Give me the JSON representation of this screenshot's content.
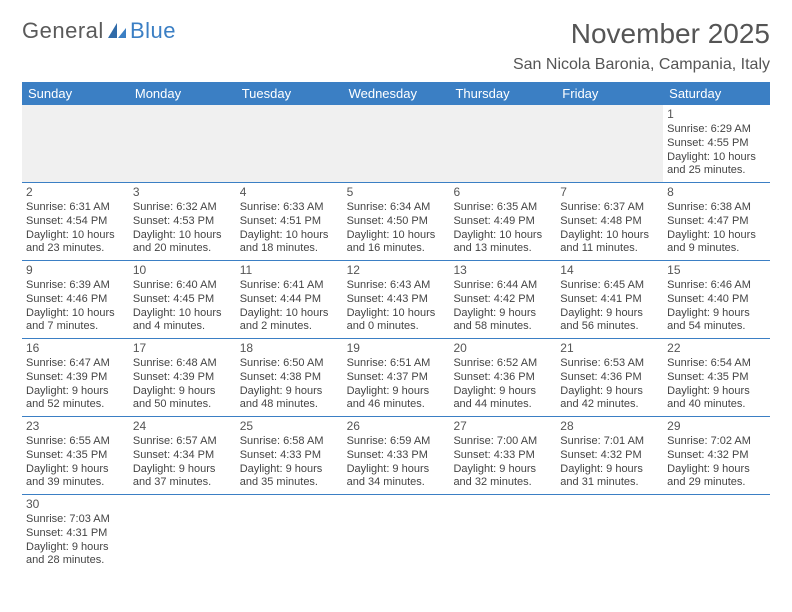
{
  "logo": {
    "text1": "General",
    "text2": "Blue"
  },
  "title": "November 2025",
  "location": "San Nicola Baronia, Campania, Italy",
  "colors": {
    "header_bg": "#3b7fc4",
    "header_text": "#ffffff",
    "border": "#3b7fc4",
    "empty_bg": "#f0f0f0",
    "text": "#444444",
    "title_text": "#555555"
  },
  "dow": [
    "Sunday",
    "Monday",
    "Tuesday",
    "Wednesday",
    "Thursday",
    "Friday",
    "Saturday"
  ],
  "weeks": [
    [
      null,
      null,
      null,
      null,
      null,
      null,
      {
        "n": "1",
        "sr": "Sunrise: 6:29 AM",
        "ss": "Sunset: 4:55 PM",
        "dl": "Daylight: 10 hours and 25 minutes."
      }
    ],
    [
      {
        "n": "2",
        "sr": "Sunrise: 6:31 AM",
        "ss": "Sunset: 4:54 PM",
        "dl": "Daylight: 10 hours and 23 minutes."
      },
      {
        "n": "3",
        "sr": "Sunrise: 6:32 AM",
        "ss": "Sunset: 4:53 PM",
        "dl": "Daylight: 10 hours and 20 minutes."
      },
      {
        "n": "4",
        "sr": "Sunrise: 6:33 AM",
        "ss": "Sunset: 4:51 PM",
        "dl": "Daylight: 10 hours and 18 minutes."
      },
      {
        "n": "5",
        "sr": "Sunrise: 6:34 AM",
        "ss": "Sunset: 4:50 PM",
        "dl": "Daylight: 10 hours and 16 minutes."
      },
      {
        "n": "6",
        "sr": "Sunrise: 6:35 AM",
        "ss": "Sunset: 4:49 PM",
        "dl": "Daylight: 10 hours and 13 minutes."
      },
      {
        "n": "7",
        "sr": "Sunrise: 6:37 AM",
        "ss": "Sunset: 4:48 PM",
        "dl": "Daylight: 10 hours and 11 minutes."
      },
      {
        "n": "8",
        "sr": "Sunrise: 6:38 AM",
        "ss": "Sunset: 4:47 PM",
        "dl": "Daylight: 10 hours and 9 minutes."
      }
    ],
    [
      {
        "n": "9",
        "sr": "Sunrise: 6:39 AM",
        "ss": "Sunset: 4:46 PM",
        "dl": "Daylight: 10 hours and 7 minutes."
      },
      {
        "n": "10",
        "sr": "Sunrise: 6:40 AM",
        "ss": "Sunset: 4:45 PM",
        "dl": "Daylight: 10 hours and 4 minutes."
      },
      {
        "n": "11",
        "sr": "Sunrise: 6:41 AM",
        "ss": "Sunset: 4:44 PM",
        "dl": "Daylight: 10 hours and 2 minutes."
      },
      {
        "n": "12",
        "sr": "Sunrise: 6:43 AM",
        "ss": "Sunset: 4:43 PM",
        "dl": "Daylight: 10 hours and 0 minutes."
      },
      {
        "n": "13",
        "sr": "Sunrise: 6:44 AM",
        "ss": "Sunset: 4:42 PM",
        "dl": "Daylight: 9 hours and 58 minutes."
      },
      {
        "n": "14",
        "sr": "Sunrise: 6:45 AM",
        "ss": "Sunset: 4:41 PM",
        "dl": "Daylight: 9 hours and 56 minutes."
      },
      {
        "n": "15",
        "sr": "Sunrise: 6:46 AM",
        "ss": "Sunset: 4:40 PM",
        "dl": "Daylight: 9 hours and 54 minutes."
      }
    ],
    [
      {
        "n": "16",
        "sr": "Sunrise: 6:47 AM",
        "ss": "Sunset: 4:39 PM",
        "dl": "Daylight: 9 hours and 52 minutes."
      },
      {
        "n": "17",
        "sr": "Sunrise: 6:48 AM",
        "ss": "Sunset: 4:39 PM",
        "dl": "Daylight: 9 hours and 50 minutes."
      },
      {
        "n": "18",
        "sr": "Sunrise: 6:50 AM",
        "ss": "Sunset: 4:38 PM",
        "dl": "Daylight: 9 hours and 48 minutes."
      },
      {
        "n": "19",
        "sr": "Sunrise: 6:51 AM",
        "ss": "Sunset: 4:37 PM",
        "dl": "Daylight: 9 hours and 46 minutes."
      },
      {
        "n": "20",
        "sr": "Sunrise: 6:52 AM",
        "ss": "Sunset: 4:36 PM",
        "dl": "Daylight: 9 hours and 44 minutes."
      },
      {
        "n": "21",
        "sr": "Sunrise: 6:53 AM",
        "ss": "Sunset: 4:36 PM",
        "dl": "Daylight: 9 hours and 42 minutes."
      },
      {
        "n": "22",
        "sr": "Sunrise: 6:54 AM",
        "ss": "Sunset: 4:35 PM",
        "dl": "Daylight: 9 hours and 40 minutes."
      }
    ],
    [
      {
        "n": "23",
        "sr": "Sunrise: 6:55 AM",
        "ss": "Sunset: 4:35 PM",
        "dl": "Daylight: 9 hours and 39 minutes."
      },
      {
        "n": "24",
        "sr": "Sunrise: 6:57 AM",
        "ss": "Sunset: 4:34 PM",
        "dl": "Daylight: 9 hours and 37 minutes."
      },
      {
        "n": "25",
        "sr": "Sunrise: 6:58 AM",
        "ss": "Sunset: 4:33 PM",
        "dl": "Daylight: 9 hours and 35 minutes."
      },
      {
        "n": "26",
        "sr": "Sunrise: 6:59 AM",
        "ss": "Sunset: 4:33 PM",
        "dl": "Daylight: 9 hours and 34 minutes."
      },
      {
        "n": "27",
        "sr": "Sunrise: 7:00 AM",
        "ss": "Sunset: 4:33 PM",
        "dl": "Daylight: 9 hours and 32 minutes."
      },
      {
        "n": "28",
        "sr": "Sunrise: 7:01 AM",
        "ss": "Sunset: 4:32 PM",
        "dl": "Daylight: 9 hours and 31 minutes."
      },
      {
        "n": "29",
        "sr": "Sunrise: 7:02 AM",
        "ss": "Sunset: 4:32 PM",
        "dl": "Daylight: 9 hours and 29 minutes."
      }
    ],
    [
      {
        "n": "30",
        "sr": "Sunrise: 7:03 AM",
        "ss": "Sunset: 4:31 PM",
        "dl": "Daylight: 9 hours and 28 minutes."
      },
      null,
      null,
      null,
      null,
      null,
      null
    ]
  ]
}
